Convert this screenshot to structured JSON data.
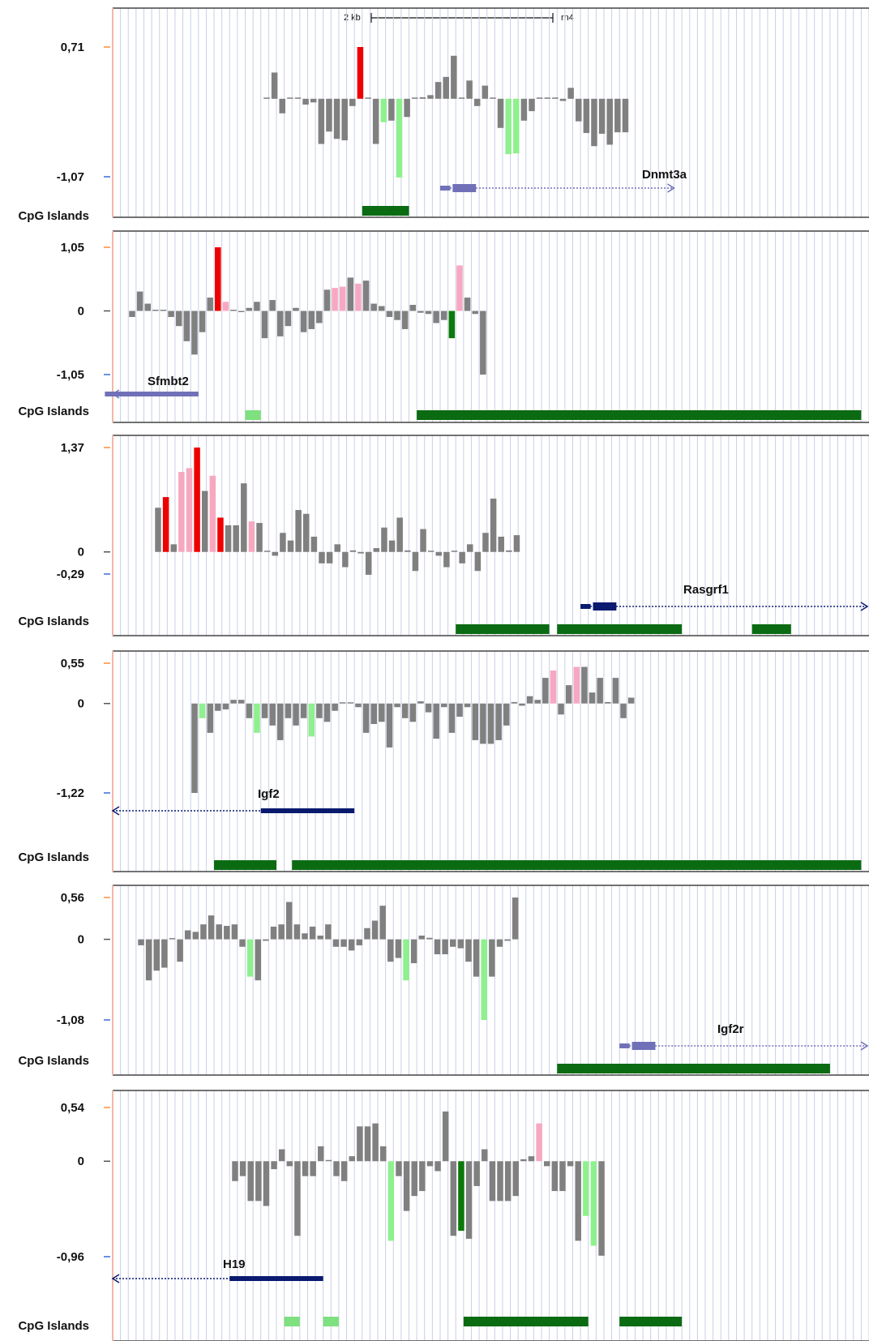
{
  "colors": {
    "neutral": "#808080",
    "hyper": "#ee0000",
    "hyper_light": "#f7a8c0",
    "hypo": "#8ef08e",
    "hypo_dark": "#0a7a0a",
    "cpg": "#0b6b12",
    "cpg_light": "#7ee07e",
    "gene_dark": "#0a1a6e",
    "gene_light": "#7070b8"
  },
  "scale_bar": {
    "label": "2 kb",
    "assembly": "rn4"
  },
  "chart_data": [
    {
      "type": "bar",
      "gene": "Dnmt3a",
      "y_ticks": [
        {
          "label": "0,71",
          "value": 0.71
        },
        {
          "label": "-1,07",
          "value": -1.07
        }
      ],
      "ylim": [
        -1.07,
        0.71
      ],
      "track_label": "CpG Islands",
      "values": [
        0.01,
        0.36,
        -0.2,
        0,
        0,
        -0.08,
        -0.05,
        -0.62,
        -0.45,
        -0.55,
        -0.57,
        -0.1,
        0.71,
        0,
        -0.62,
        -0.32,
        -0.3,
        -1.08,
        -0.25,
        0,
        0.02,
        0.05,
        0.23,
        0.3,
        0.59,
        0.01,
        0.25,
        -0.1,
        0.18,
        0,
        -0.4,
        -0.76,
        -0.75,
        -0.3,
        -0.17,
        0,
        0,
        0,
        -0.03,
        0.15,
        -0.31,
        -0.47,
        -0.65,
        -0.48,
        -0.63,
        -0.46,
        -0.46
      ],
      "bar_colors": [
        "neutral",
        "neutral",
        "neutral",
        "neutral",
        "neutral",
        "neutral",
        "neutral",
        "neutral",
        "neutral",
        "neutral",
        "neutral",
        "neutral",
        "hyper",
        "neutral",
        "neutral",
        "hypo",
        "neutral",
        "hypo",
        "neutral",
        "neutral",
        "neutral",
        "neutral",
        "neutral",
        "neutral",
        "neutral",
        "neutral",
        "neutral",
        "neutral",
        "neutral",
        "neutral",
        "neutral",
        "hypo",
        "hypo",
        "neutral",
        "neutral",
        "neutral",
        "neutral",
        "neutral",
        "neutral",
        "neutral",
        "neutral",
        "neutral",
        "neutral",
        "neutral",
        "neutral",
        "neutral",
        "neutral"
      ],
      "cpg_islands": [
        {
          "start": 32,
          "end": 38,
          "shade": "cpg"
        }
      ],
      "gene_model": {
        "start": 42,
        "end": 72,
        "strand": "+",
        "shade": "gene_light"
      }
    },
    {
      "type": "bar",
      "gene": "Sfmbt2",
      "y_ticks": [
        {
          "label": "1,05",
          "value": 1.05
        },
        {
          "label": "0",
          "value": 0
        },
        {
          "label": "-1,05",
          "value": -1.05
        }
      ],
      "ylim": [
        -1.05,
        1.05
      ],
      "track_label": "CpG Islands",
      "values": [
        -0.1,
        0.32,
        0.12,
        0.02,
        0,
        -0.1,
        -0.25,
        -0.5,
        -0.72,
        -0.35,
        0.22,
        1.05,
        0.15,
        0,
        -0.02,
        0.05,
        0.15,
        -0.45,
        0.18,
        -0.42,
        -0.25,
        0.05,
        -0.35,
        -0.3,
        -0.2,
        0.35,
        0.38,
        0.4,
        0.55,
        0.45,
        0.5,
        0.12,
        0.08,
        -0.1,
        -0.15,
        -0.3,
        0.1,
        -0.03,
        -0.05,
        -0.2,
        -0.15,
        -0.45,
        0.75,
        0.22,
        -0.05,
        -1.05
      ],
      "bar_colors": [
        "neutral",
        "neutral",
        "neutral",
        "neutral",
        "neutral",
        "neutral",
        "neutral",
        "neutral",
        "neutral",
        "neutral",
        "neutral",
        "hyper",
        "hyper_light",
        "neutral",
        "neutral",
        "neutral",
        "neutral",
        "neutral",
        "neutral",
        "neutral",
        "neutral",
        "neutral",
        "neutral",
        "neutral",
        "neutral",
        "neutral",
        "hyper_light",
        "hyper_light",
        "neutral",
        "hyper_light",
        "neutral",
        "neutral",
        "neutral",
        "neutral",
        "neutral",
        "neutral",
        "neutral",
        "neutral",
        "neutral",
        "neutral",
        "neutral",
        "hypo_dark",
        "hyper_light",
        "neutral",
        "neutral",
        "neutral"
      ],
      "cpg_islands": [
        {
          "start": 17,
          "end": 19,
          "shade": "cpg_light"
        },
        {
          "start": 39,
          "end": 96,
          "shade": "cpg"
        }
      ],
      "gene_model": {
        "start": 0,
        "end": 11,
        "strand": "-",
        "shade": "gene_light"
      }
    },
    {
      "type": "bar",
      "gene": "Rasgrf1",
      "y_ticks": [
        {
          "label": "1,37",
          "value": 1.37
        },
        {
          "label": "0",
          "value": 0
        },
        {
          "label": "-0,29",
          "value": -0.29
        }
      ],
      "ylim": [
        -0.29,
        1.37
      ],
      "track_label": "CpG Islands",
      "values": [
        0.58,
        0.72,
        0.1,
        1.05,
        1.1,
        1.37,
        0.8,
        1.0,
        0.45,
        0.35,
        0.35,
        0.9,
        0.4,
        0.38,
        0,
        -0.05,
        0.25,
        0.15,
        0.55,
        0.5,
        0.2,
        -0.15,
        -0.15,
        0.1,
        -0.2,
        0.02,
        -0.02,
        -0.3,
        0.05,
        0.32,
        0.15,
        0.45,
        0.02,
        -0.25,
        0.3,
        0,
        -0.05,
        -0.2,
        0,
        -0.15,
        0.1,
        -0.25,
        0.25,
        0.7,
        0.2,
        0.02,
        0.22
      ],
      "bar_colors": [
        "neutral",
        "hyper",
        "neutral",
        "hyper_light",
        "hyper_light",
        "hyper",
        "neutral",
        "hyper_light",
        "hyper",
        "neutral",
        "neutral",
        "neutral",
        "hyper_light",
        "neutral",
        "neutral",
        "neutral",
        "neutral",
        "neutral",
        "neutral",
        "neutral",
        "neutral",
        "neutral",
        "neutral",
        "neutral",
        "neutral",
        "neutral",
        "neutral",
        "neutral",
        "neutral",
        "neutral",
        "neutral",
        "neutral",
        "neutral",
        "neutral",
        "neutral",
        "neutral",
        "neutral",
        "neutral",
        "neutral",
        "neutral",
        "neutral",
        "neutral",
        "neutral",
        "neutral",
        "neutral",
        "neutral",
        "neutral"
      ],
      "cpg_islands": [
        {
          "start": 44,
          "end": 56,
          "shade": "cpg"
        },
        {
          "start": 57,
          "end": 73,
          "shade": "cpg"
        },
        {
          "start": 82,
          "end": 87,
          "shade": "cpg"
        }
      ],
      "gene_model": {
        "start": 60,
        "end": 97,
        "strand": "+",
        "shade": "gene_dark"
      }
    },
    {
      "type": "bar",
      "gene": "Igf2",
      "y_ticks": [
        {
          "label": "0,55",
          "value": 0.55
        },
        {
          "label": "0",
          "value": 0
        },
        {
          "label": "-1,22",
          "value": -1.22
        }
      ],
      "ylim": [
        -1.22,
        0.55
      ],
      "track_label": "CpG Islands",
      "values": [
        -1.22,
        -0.2,
        -0.4,
        -0.1,
        -0.08,
        0.05,
        0.05,
        -0.2,
        -0.4,
        -0.2,
        -0.3,
        -0.5,
        -0.2,
        -0.3,
        -0.2,
        -0.45,
        -0.2,
        -0.25,
        -0.1,
        0,
        0,
        -0.05,
        -0.4,
        -0.28,
        -0.25,
        -0.6,
        -0.05,
        -0.2,
        -0.25,
        0.03,
        -0.12,
        -0.48,
        -0.05,
        -0.4,
        -0.18,
        -0.05,
        -0.5,
        -0.55,
        -0.55,
        -0.5,
        -0.3,
        0.02,
        -0.03,
        0.1,
        0.05,
        0.35,
        0.45,
        -0.15,
        0.25,
        0.5,
        0.5,
        0.15,
        0.35,
        0.02,
        0.35,
        -0.2,
        0.08
      ],
      "bar_colors": [
        "neutral",
        "hypo",
        "neutral",
        "neutral",
        "neutral",
        "neutral",
        "neutral",
        "neutral",
        "hypo",
        "neutral",
        "neutral",
        "neutral",
        "neutral",
        "neutral",
        "neutral",
        "hypo",
        "neutral",
        "neutral",
        "neutral",
        "neutral",
        "neutral",
        "neutral",
        "neutral",
        "neutral",
        "neutral",
        "neutral",
        "neutral",
        "neutral",
        "neutral",
        "neutral",
        "neutral",
        "neutral",
        "neutral",
        "neutral",
        "neutral",
        "neutral",
        "neutral",
        "neutral",
        "neutral",
        "neutral",
        "neutral",
        "neutral",
        "neutral",
        "neutral",
        "neutral",
        "neutral",
        "hyper_light",
        "neutral",
        "neutral",
        "hyper_light",
        "neutral",
        "neutral",
        "neutral",
        "neutral",
        "neutral",
        "neutral",
        "neutral"
      ],
      "cpg_islands": [
        {
          "start": 13,
          "end": 21,
          "shade": "cpg"
        },
        {
          "start": 23,
          "end": 96,
          "shade": "cpg"
        }
      ],
      "gene_model": {
        "start": 0,
        "end": 31,
        "strand": "-",
        "shade": "gene_dark"
      }
    },
    {
      "type": "bar",
      "gene": "Igf2r",
      "y_ticks": [
        {
          "label": "0,56",
          "value": 0.56
        },
        {
          "label": "0",
          "value": 0
        },
        {
          "label": "-1,08",
          "value": -1.08
        }
      ],
      "ylim": [
        -1.08,
        0.56
      ],
      "track_label": "CpG Islands",
      "values": [
        -0.08,
        -0.55,
        -0.42,
        -0.38,
        0,
        -0.3,
        0.12,
        0.1,
        0.2,
        0.32,
        0.2,
        0.18,
        0.2,
        -0.1,
        -0.5,
        -0.55,
        -0.02,
        0.17,
        0.2,
        0.5,
        0.2,
        0.08,
        0.17,
        0.05,
        0.2,
        -0.1,
        -0.1,
        -0.15,
        -0.08,
        0.15,
        0.25,
        0.45,
        -0.3,
        -0.25,
        -0.55,
        -0.32,
        0.05,
        0.02,
        -0.2,
        -0.2,
        -0.1,
        -0.12,
        -0.3,
        -0.5,
        -1.08,
        -0.5,
        -0.1,
        -0.02,
        0.56
      ],
      "bar_colors": [
        "neutral",
        "neutral",
        "neutral",
        "neutral",
        "neutral",
        "neutral",
        "neutral",
        "neutral",
        "neutral",
        "neutral",
        "neutral",
        "neutral",
        "neutral",
        "neutral",
        "hypo",
        "neutral",
        "neutral",
        "neutral",
        "neutral",
        "neutral",
        "neutral",
        "neutral",
        "neutral",
        "neutral",
        "neutral",
        "neutral",
        "neutral",
        "neutral",
        "neutral",
        "neutral",
        "neutral",
        "neutral",
        "neutral",
        "neutral",
        "hypo",
        "neutral",
        "neutral",
        "neutral",
        "neutral",
        "neutral",
        "neutral",
        "neutral",
        "neutral",
        "neutral",
        "hypo",
        "neutral",
        "neutral",
        "neutral",
        "neutral"
      ],
      "cpg_islands": [
        {
          "start": 57,
          "end": 92,
          "shade": "cpg"
        }
      ],
      "gene_model": {
        "start": 65,
        "end": 97,
        "strand": "+",
        "shade": "gene_light"
      }
    },
    {
      "type": "bar",
      "gene": "H19",
      "y_ticks": [
        {
          "label": "0,54",
          "value": 0.54
        },
        {
          "label": "0",
          "value": 0
        },
        {
          "label": "-0,96",
          "value": -0.96
        }
      ],
      "ylim": [
        -0.96,
        0.54
      ],
      "track_label": "CpG Islands",
      "values": [
        -0.2,
        -0.15,
        -0.4,
        -0.4,
        -0.45,
        -0.08,
        0.12,
        -0.05,
        -0.75,
        -0.15,
        -0.15,
        0.15,
        0,
        -0.15,
        -0.2,
        0.05,
        0.35,
        0.35,
        0.38,
        0.15,
        -0.8,
        -0.15,
        -0.5,
        -0.35,
        -0.3,
        -0.05,
        -0.1,
        0.5,
        -0.75,
        -0.7,
        -0.78,
        -0.25,
        0.12,
        -0.4,
        -0.4,
        -0.4,
        -0.35,
        0.02,
        0.05,
        0.38,
        -0.05,
        -0.3,
        -0.3,
        -0.05,
        -0.8,
        -0.55,
        -0.85,
        -0.95
      ],
      "bar_colors": [
        "neutral",
        "neutral",
        "neutral",
        "neutral",
        "neutral",
        "neutral",
        "neutral",
        "neutral",
        "neutral",
        "neutral",
        "neutral",
        "neutral",
        "neutral",
        "neutral",
        "neutral",
        "neutral",
        "neutral",
        "neutral",
        "neutral",
        "neutral",
        "hypo",
        "neutral",
        "neutral",
        "neutral",
        "neutral",
        "neutral",
        "neutral",
        "neutral",
        "neutral",
        "hypo_dark",
        "neutral",
        "neutral",
        "neutral",
        "neutral",
        "neutral",
        "neutral",
        "neutral",
        "neutral",
        "neutral",
        "hyper_light",
        "neutral",
        "neutral",
        "neutral",
        "neutral",
        "neutral",
        "hypo",
        "hypo",
        "neutral"
      ],
      "cpg_islands": [
        {
          "start": 22,
          "end": 24,
          "shade": "cpg_light"
        },
        {
          "start": 27,
          "end": 29,
          "shade": "cpg_light"
        },
        {
          "start": 45,
          "end": 61,
          "shade": "cpg"
        },
        {
          "start": 65,
          "end": 73,
          "shade": "cpg"
        }
      ],
      "gene_model": {
        "start": 0,
        "end": 27,
        "strand": "-",
        "shade": "gene_dark"
      }
    }
  ]
}
